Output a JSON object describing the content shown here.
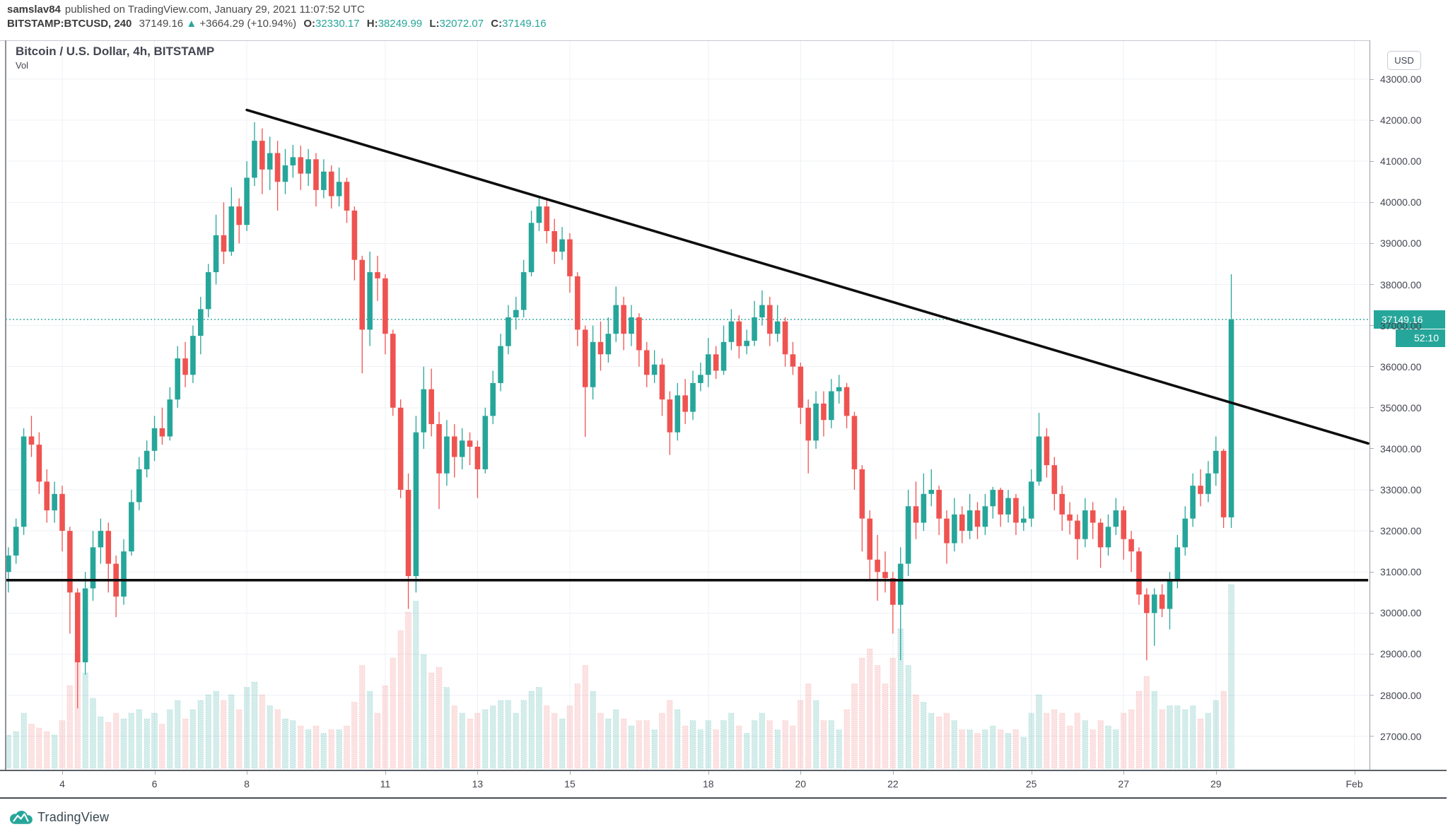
{
  "header": {
    "author": "samslav84",
    "published": "published on TradingView.com, January 29, 2021 11:07:52 UTC",
    "symbol_interval": "BITSTAMP:BTCUSD, 240",
    "last_price": "37149.16",
    "direction_icon": "▲",
    "change": "+3664.29 (+10.94%)",
    "ohlc": [
      {
        "label": "O:",
        "value": "32330.17"
      },
      {
        "label": "H:",
        "value": "38249.99"
      },
      {
        "label": "L:",
        "value": "32072.07"
      },
      {
        "label": "C:",
        "value": "37149.16"
      }
    ]
  },
  "chart": {
    "title": "Bitcoin / U.S. Dollar, 4h, BITSTAMP",
    "indicator_label": "Vol",
    "currency_button": "USD",
    "price_label": "37149.16",
    "countdown": "52:10",
    "colors": {
      "up": "#26a69a",
      "down": "#ef5350",
      "volume_up": "rgba(38,166,154,0.20)",
      "volume_down": "rgba(239,83,80,0.16)",
      "grid": "#eef1f6",
      "trendline": "#0d0d0d",
      "price_line": "#26a69a",
      "axis_text": "#434651"
    }
  },
  "footer": {
    "logo_text": "TradingView"
  },
  "chart_data": {
    "type": "candlestick",
    "symbol": "BITSTAMP:BTCUSD",
    "interval": "240",
    "title": "Bitcoin / U.S. Dollar, 4h, BITSTAMP",
    "start": "2021-01-02 16:00 UTC",
    "interval_hours": 4,
    "current_price": 37149.16,
    "countdown": "52:10",
    "last_candle_ohlc": {
      "open": 32330.17,
      "high": 38249.99,
      "low": 32072.07,
      "close": 37149.16
    },
    "y_axis": {
      "currency": "USD",
      "tick_step": 1000,
      "ticks": [
        43000,
        42000,
        41000,
        40000,
        39000,
        38000,
        37000,
        36000,
        35000,
        34000,
        33000,
        32000,
        31000,
        30000,
        29000,
        28000,
        27000
      ]
    },
    "x_axis": {
      "month": "January 2021",
      "ticks": [
        {
          "label": "4",
          "day": 4
        },
        {
          "label": "6",
          "day": 6
        },
        {
          "label": "8",
          "day": 8
        },
        {
          "label": "11",
          "day": 11
        },
        {
          "label": "13",
          "day": 13
        },
        {
          "label": "15",
          "day": 15
        },
        {
          "label": "18",
          "day": 18
        },
        {
          "label": "20",
          "day": 20
        },
        {
          "label": "22",
          "day": 22
        },
        {
          "label": "25",
          "day": 25
        },
        {
          "label": "27",
          "day": 27
        },
        {
          "label": "29",
          "day": 29
        },
        {
          "label": "Feb",
          "day": 32
        }
      ]
    },
    "drawings": [
      {
        "type": "trendline",
        "from": {
          "day": 8.0,
          "price": 42250
        },
        "to": {
          "day": 32.3,
          "price": 34130
        }
      },
      {
        "type": "horizontal_line",
        "price": 30800,
        "from_day": 2.6,
        "to_day": 32.3
      }
    ],
    "candle_format": [
      "open",
      "high",
      "low",
      "close",
      "volume_rel"
    ],
    "candles": [
      [
        31500,
        31700,
        30700,
        31000,
        0.2
      ],
      [
        31000,
        31600,
        30500,
        31400,
        0.18
      ],
      [
        31400,
        32300,
        31200,
        32100,
        0.2
      ],
      [
        32100,
        34500,
        31900,
        34300,
        0.3
      ],
      [
        34300,
        34800,
        33800,
        34100,
        0.24
      ],
      [
        34100,
        34400,
        32900,
        33200,
        0.22
      ],
      [
        33200,
        33500,
        32200,
        32500,
        0.2
      ],
      [
        32500,
        33200,
        32200,
        32900,
        0.18
      ],
      [
        32900,
        33100,
        31500,
        32000,
        0.26
      ],
      [
        32000,
        32100,
        29500,
        30500,
        0.45
      ],
      [
        30500,
        30600,
        27678,
        28800,
        0.62
      ],
      [
        28800,
        31000,
        28500,
        30600,
        0.52
      ],
      [
        30600,
        32000,
        30300,
        31600,
        0.38
      ],
      [
        31600,
        32300,
        31200,
        32000,
        0.28
      ],
      [
        32000,
        32200,
        30500,
        31200,
        0.25
      ],
      [
        31200,
        31400,
        29900,
        30400,
        0.3
      ],
      [
        30400,
        31800,
        30200,
        31500,
        0.27
      ],
      [
        31500,
        33000,
        31400,
        32700,
        0.3
      ],
      [
        32700,
        33800,
        32500,
        33500,
        0.32
      ],
      [
        33500,
        34200,
        33300,
        33950,
        0.27
      ],
      [
        33950,
        34800,
        33700,
        34500,
        0.3
      ],
      [
        34500,
        35000,
        34100,
        34300,
        0.24
      ],
      [
        34300,
        35500,
        34200,
        35200,
        0.32
      ],
      [
        35200,
        36500,
        35000,
        36200,
        0.37
      ],
      [
        36200,
        36600,
        35500,
        35800,
        0.27
      ],
      [
        35800,
        37000,
        35600,
        36750,
        0.32
      ],
      [
        36750,
        37700,
        36300,
        37400,
        0.37
      ],
      [
        37400,
        38500,
        37200,
        38300,
        0.4
      ],
      [
        38300,
        39700,
        38000,
        39200,
        0.42
      ],
      [
        39200,
        40000,
        38500,
        38800,
        0.37
      ],
      [
        38800,
        40365,
        38700,
        39900,
        0.4
      ],
      [
        39900,
        40100,
        39000,
        39450,
        0.32
      ],
      [
        39450,
        41000,
        39300,
        40600,
        0.44
      ],
      [
        40600,
        41950,
        40400,
        41500,
        0.47
      ],
      [
        41500,
        41800,
        40200,
        40800,
        0.4
      ],
      [
        40800,
        41600,
        40300,
        41200,
        0.34
      ],
      [
        41200,
        41500,
        39800,
        40500,
        0.32
      ],
      [
        40500,
        41300,
        40200,
        40900,
        0.27
      ],
      [
        40900,
        41400,
        40600,
        41100,
        0.26
      ],
      [
        41100,
        41380,
        40300,
        40700,
        0.23
      ],
      [
        40700,
        41300,
        40400,
        41050,
        0.21
      ],
      [
        41050,
        41200,
        39900,
        40300,
        0.23
      ],
      [
        40300,
        41050,
        40100,
        40750,
        0.19
      ],
      [
        40750,
        40900,
        39850,
        40150,
        0.21
      ],
      [
        40150,
        40850,
        39900,
        40500,
        0.21
      ],
      [
        40500,
        40600,
        39500,
        39800,
        0.23
      ],
      [
        39800,
        39900,
        38100,
        38600,
        0.36
      ],
      [
        38600,
        38700,
        35838,
        36900,
        0.56
      ],
      [
        36900,
        38800,
        36500,
        38300,
        0.42
      ],
      [
        38300,
        38700,
        37600,
        38150,
        0.3
      ],
      [
        38150,
        38250,
        36300,
        36800,
        0.45
      ],
      [
        36800,
        36900,
        34800,
        35000,
        0.6
      ],
      [
        35000,
        35200,
        32800,
        33000,
        0.75
      ],
      [
        33000,
        33400,
        30100,
        30900,
        0.85
      ],
      [
        30900,
        34800,
        30500,
        34400,
        0.91
      ],
      [
        34400,
        36000,
        34000,
        35450,
        0.62
      ],
      [
        35450,
        35950,
        34300,
        34600,
        0.52
      ],
      [
        34600,
        34900,
        32531,
        33400,
        0.55
      ],
      [
        33400,
        34700,
        33100,
        34300,
        0.44
      ],
      [
        34300,
        34600,
        33300,
        33800,
        0.34
      ],
      [
        33800,
        34500,
        33500,
        34200,
        0.3
      ],
      [
        34200,
        34400,
        33600,
        34050,
        0.27
      ],
      [
        34050,
        34200,
        32800,
        33500,
        0.3
      ],
      [
        33500,
        35000,
        33400,
        34800,
        0.32
      ],
      [
        34800,
        35900,
        34600,
        35600,
        0.34
      ],
      [
        35600,
        36800,
        35400,
        36500,
        0.37
      ],
      [
        36500,
        37500,
        36300,
        37200,
        0.37
      ],
      [
        37200,
        37700,
        36900,
        37380,
        0.3
      ],
      [
        37380,
        38600,
        37200,
        38300,
        0.37
      ],
      [
        38300,
        39800,
        38200,
        39500,
        0.42
      ],
      [
        39500,
        40100,
        39300,
        39900,
        0.44
      ],
      [
        39900,
        40050,
        39000,
        39300,
        0.34
      ],
      [
        39300,
        39600,
        38500,
        38800,
        0.3
      ],
      [
        38800,
        39400,
        38600,
        39100,
        0.27
      ],
      [
        39100,
        39250,
        37800,
        38200,
        0.34
      ],
      [
        38200,
        38300,
        36500,
        36900,
        0.46
      ],
      [
        36900,
        37000,
        34288,
        35500,
        0.56
      ],
      [
        35500,
        37000,
        35200,
        36600,
        0.42
      ],
      [
        36600,
        37100,
        35900,
        36300,
        0.3
      ],
      [
        36300,
        37200,
        36100,
        36800,
        0.27
      ],
      [
        36800,
        37950,
        36600,
        37500,
        0.32
      ],
      [
        37500,
        37700,
        36400,
        36800,
        0.27
      ],
      [
        36800,
        37500,
        36500,
        37200,
        0.23
      ],
      [
        37200,
        37300,
        36000,
        36400,
        0.26
      ],
      [
        36400,
        36600,
        35500,
        35800,
        0.26
      ],
      [
        35800,
        36400,
        35600,
        36050,
        0.21
      ],
      [
        36050,
        36200,
        34800,
        35200,
        0.3
      ],
      [
        35200,
        35400,
        33850,
        34400,
        0.37
      ],
      [
        34400,
        35600,
        34200,
        35300,
        0.32
      ],
      [
        35300,
        35700,
        34600,
        34900,
        0.23
      ],
      [
        34900,
        35900,
        34700,
        35600,
        0.26
      ],
      [
        35600,
        36100,
        35400,
        35800,
        0.21
      ],
      [
        35800,
        36700,
        35500,
        36300,
        0.26
      ],
      [
        36300,
        36500,
        35700,
        35900,
        0.21
      ],
      [
        35900,
        37000,
        35800,
        36600,
        0.26
      ],
      [
        36600,
        37400,
        36400,
        37100,
        0.3
      ],
      [
        37100,
        37250,
        36200,
        36500,
        0.23
      ],
      [
        36500,
        36900,
        36300,
        36630,
        0.19
      ],
      [
        36630,
        37600,
        36500,
        37200,
        0.26
      ],
      [
        37200,
        37857,
        37000,
        37500,
        0.3
      ],
      [
        37500,
        37700,
        36500,
        36800,
        0.26
      ],
      [
        36800,
        37500,
        36600,
        37100,
        0.21
      ],
      [
        37100,
        37200,
        36000,
        36300,
        0.26
      ],
      [
        36300,
        36600,
        35800,
        36000,
        0.23
      ],
      [
        36000,
        36100,
        34600,
        35000,
        0.37
      ],
      [
        35000,
        35200,
        33400,
        34200,
        0.46
      ],
      [
        34200,
        35400,
        34000,
        35100,
        0.37
      ],
      [
        35100,
        35400,
        34300,
        34700,
        0.26
      ],
      [
        34700,
        35700,
        34500,
        35400,
        0.26
      ],
      [
        35400,
        35800,
        35100,
        35500,
        0.21
      ],
      [
        35500,
        35600,
        34500,
        34800,
        0.32
      ],
      [
        34800,
        34900,
        33000,
        33500,
        0.46
      ],
      [
        33500,
        33600,
        31500,
        32300,
        0.6
      ],
      [
        32300,
        32500,
        30800,
        31300,
        0.65
      ],
      [
        31300,
        31900,
        30300,
        31000,
        0.56
      ],
      [
        31000,
        31500,
        30500,
        30850,
        0.46
      ],
      [
        30850,
        31000,
        29500,
        30200,
        0.6
      ],
      [
        30200,
        31600,
        28850,
        31200,
        0.76
      ],
      [
        31200,
        33000,
        30900,
        32600,
        0.56
      ],
      [
        32600,
        33200,
        31800,
        32200,
        0.4
      ],
      [
        32200,
        33400,
        32000,
        32900,
        0.36
      ],
      [
        32900,
        33500,
        32600,
        33000,
        0.3
      ],
      [
        33000,
        33100,
        31900,
        32300,
        0.28
      ],
      [
        32300,
        32500,
        31200,
        31700,
        0.3
      ],
      [
        31700,
        32800,
        31500,
        32400,
        0.26
      ],
      [
        32400,
        32600,
        31700,
        32000,
        0.21
      ],
      [
        32000,
        32900,
        31800,
        32500,
        0.21
      ],
      [
        32500,
        32700,
        31800,
        32100,
        0.19
      ],
      [
        32100,
        32900,
        31900,
        32600,
        0.21
      ],
      [
        32600,
        33071,
        32300,
        33000,
        0.23
      ],
      [
        33000,
        33050,
        32100,
        32400,
        0.21
      ],
      [
        32400,
        33000,
        32200,
        32800,
        0.19
      ],
      [
        32800,
        32900,
        31900,
        32200,
        0.21
      ],
      [
        32200,
        32600,
        32000,
        32300,
        0.17
      ],
      [
        32300,
        33500,
        32100,
        33200,
        0.3
      ],
      [
        33200,
        34875,
        33100,
        34300,
        0.4
      ],
      [
        34300,
        34500,
        33300,
        33600,
        0.3
      ],
      [
        33600,
        33800,
        32500,
        32900,
        0.32
      ],
      [
        32900,
        33100,
        32000,
        32400,
        0.3
      ],
      [
        32400,
        32700,
        31910,
        32250,
        0.23
      ],
      [
        32250,
        32400,
        31300,
        31800,
        0.3
      ],
      [
        31800,
        32800,
        31600,
        32500,
        0.26
      ],
      [
        32500,
        32700,
        31800,
        32200,
        0.21
      ],
      [
        32200,
        32300,
        31100,
        31600,
        0.26
      ],
      [
        31600,
        32400,
        31400,
        32100,
        0.23
      ],
      [
        32100,
        32800,
        31900,
        32500,
        0.21
      ],
      [
        32500,
        32600,
        31300,
        31800,
        0.3
      ],
      [
        31800,
        32000,
        31000,
        31500,
        0.32
      ],
      [
        31500,
        31600,
        30200,
        30450,
        0.42
      ],
      [
        30450,
        30600,
        28850,
        30000,
        0.5
      ],
      [
        30000,
        30600,
        29200,
        30450,
        0.42
      ],
      [
        30450,
        30700,
        29900,
        30100,
        0.32
      ],
      [
        30100,
        31000,
        29600,
        30800,
        0.34
      ],
      [
        30800,
        31900,
        30600,
        31600,
        0.34
      ],
      [
        31600,
        32600,
        31400,
        32300,
        0.32
      ],
      [
        32300,
        33400,
        32100,
        33100,
        0.34
      ],
      [
        33100,
        33500,
        32600,
        32900,
        0.27
      ],
      [
        32900,
        33700,
        32700,
        33400,
        0.3
      ],
      [
        33400,
        34300,
        33100,
        33950,
        0.37
      ],
      [
        33950,
        34000,
        32072,
        32330,
        0.42
      ],
      [
        32330.17,
        38249.99,
        32072.07,
        37149.16,
        1.0
      ]
    ]
  }
}
